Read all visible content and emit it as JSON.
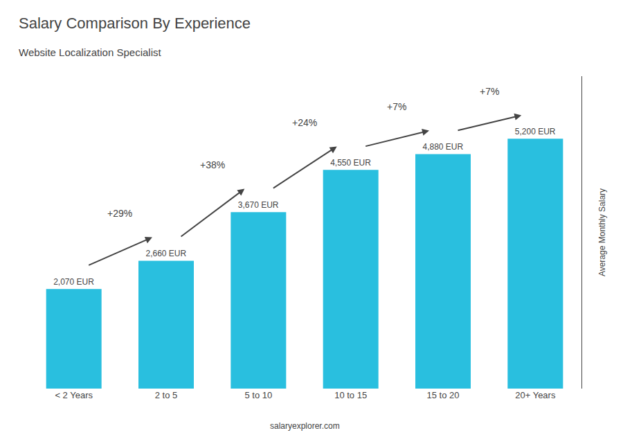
{
  "chart_data": {
    "type": "bar",
    "title": "Salary Comparison By Experience",
    "subtitle": "Website Localization Specialist",
    "ylabel": "Average Monthly Salary",
    "categories": [
      "< 2 Years",
      "2 to 5",
      "5 to 10",
      "10 to 15",
      "15 to 20",
      "20+ Years"
    ],
    "values": [
      2070,
      2660,
      3670,
      4550,
      4880,
      5200
    ],
    "value_labels": [
      "2,070 EUR",
      "2,660 EUR",
      "3,670 EUR",
      "4,550 EUR",
      "4,880 EUR",
      "5,200 EUR"
    ],
    "data_labels": true,
    "color": "#29bfdf",
    "ylim": [
      0,
      6500
    ],
    "yticks": [],
    "tick_labels": "x",
    "grid": false,
    "annotations": [
      {
        "from": "< 2 Years",
        "to": "2 to 5",
        "text": "+29%"
      },
      {
        "from": "2 to 5",
        "to": "5 to 10",
        "text": "+38%"
      },
      {
        "from": "5 to 10",
        "to": "10 to 15",
        "text": "+24%"
      },
      {
        "from": "10 to 15",
        "to": "15 to 20",
        "text": "+7%"
      },
      {
        "from": "15 to 20",
        "to": "20+ Years",
        "text": "+7%"
      },
      {
        "text": "salary"
      },
      {
        "text": "explorer.com"
      }
    ]
  }
}
